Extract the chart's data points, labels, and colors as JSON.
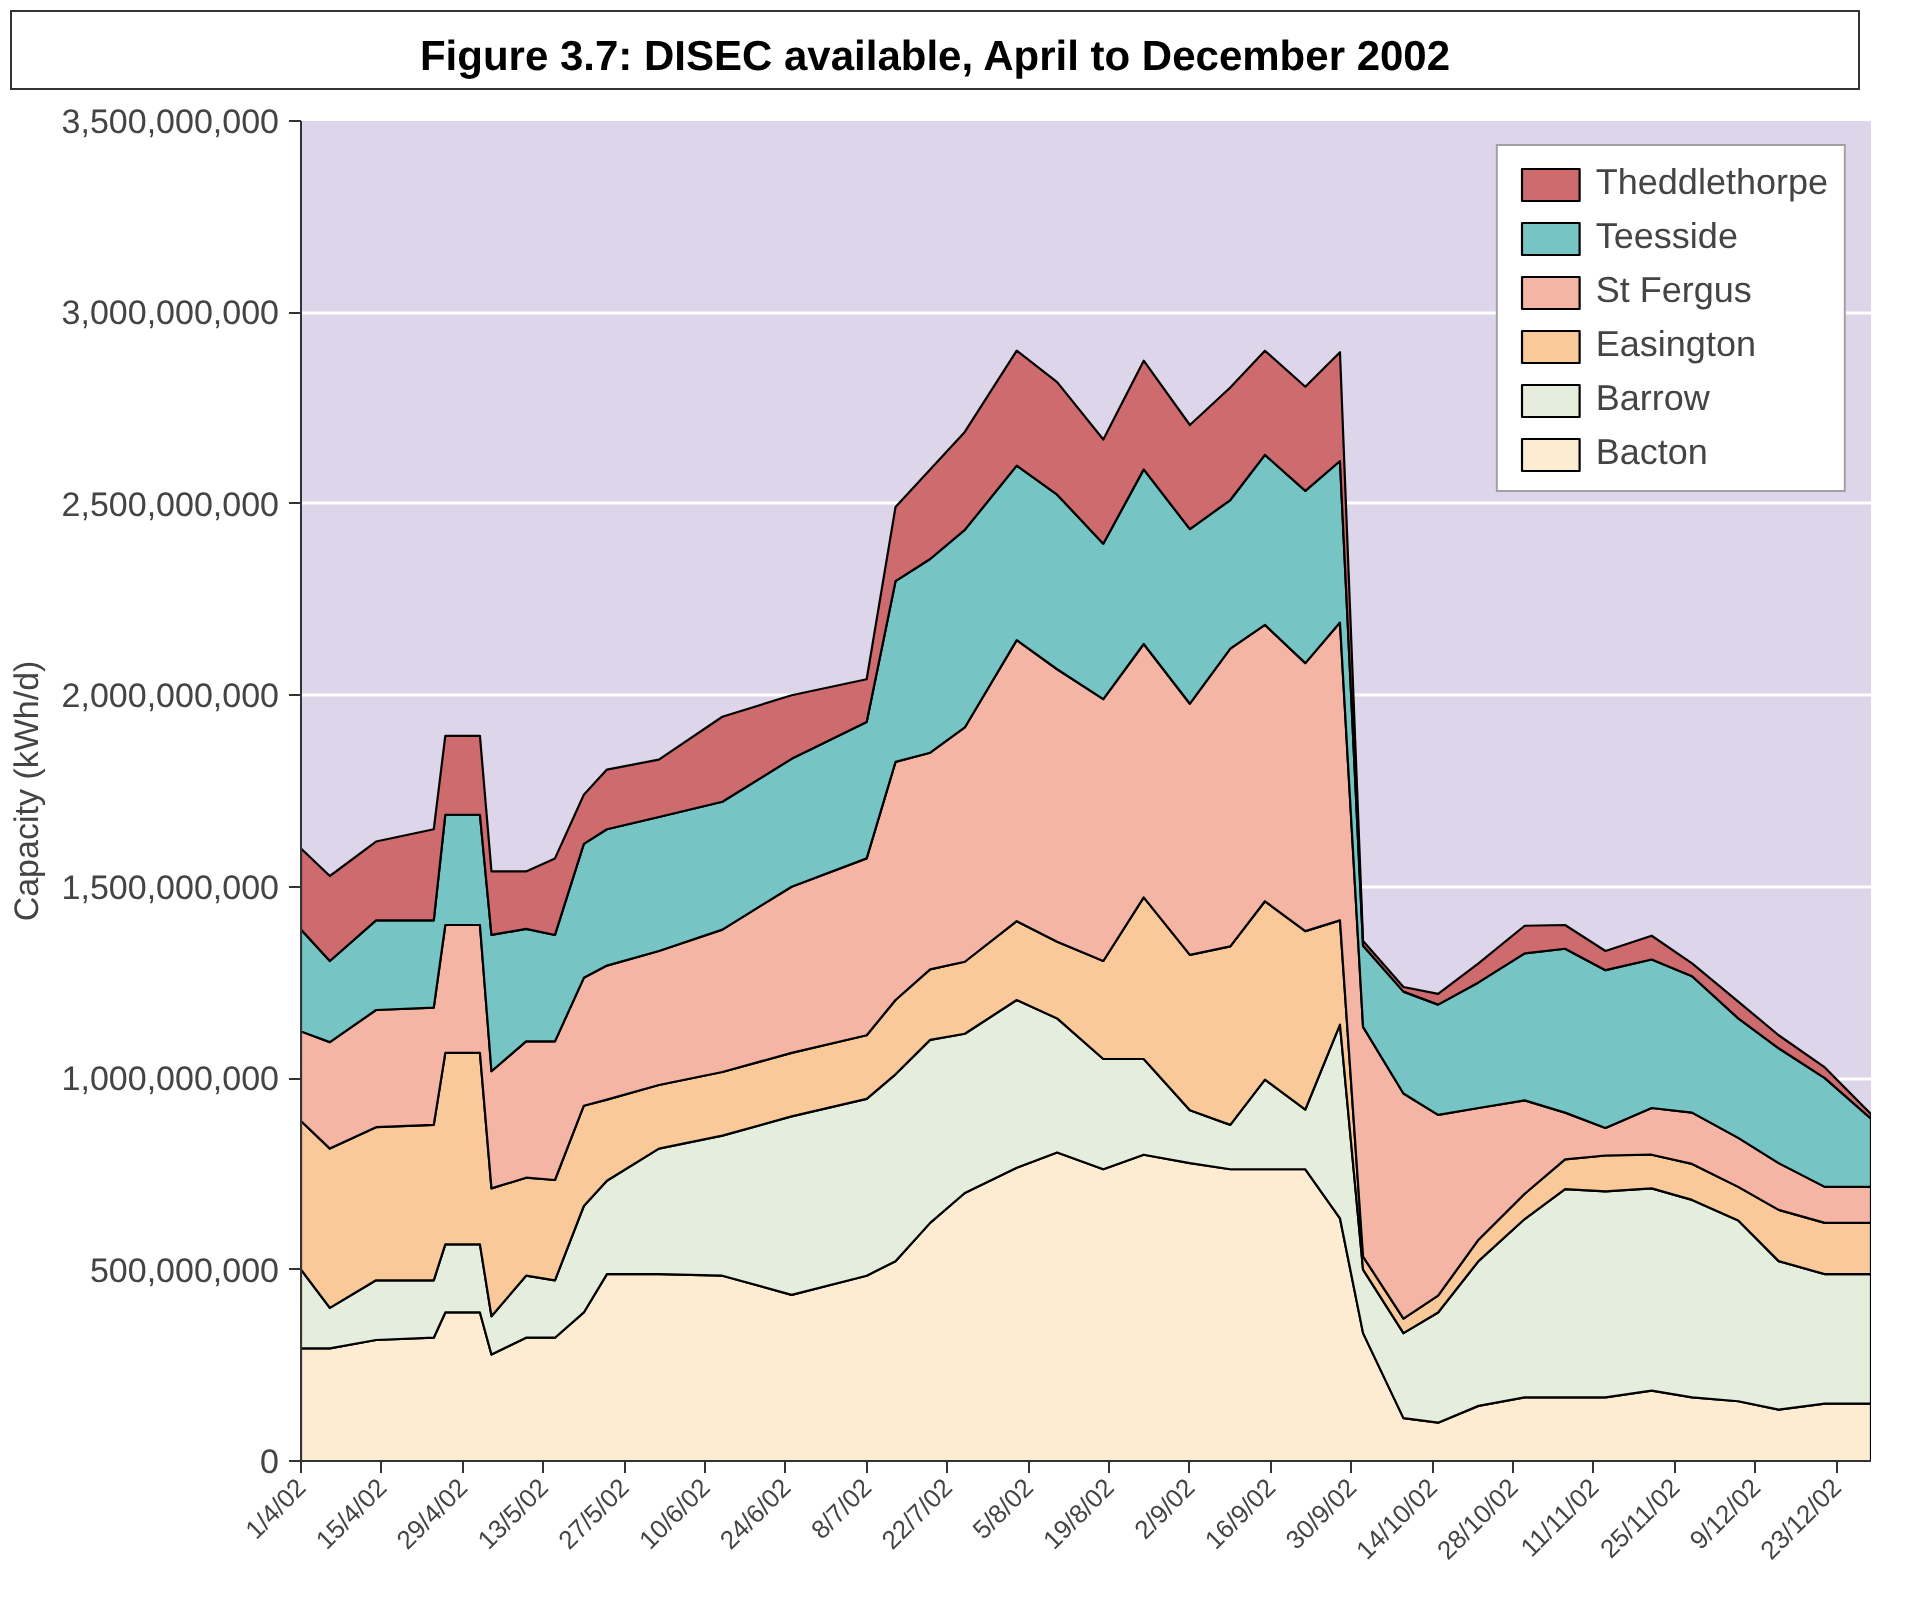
{
  "chart_data": {
    "type": "area",
    "stacked": true,
    "title": "Figure 3.7: DISEC available, April to December 2002",
    "ylabel": "Capacity (kWh/d)",
    "x": [
      "2002-04-01",
      "2002-04-06",
      "2002-04-14",
      "2002-04-24",
      "2002-04-26",
      "2002-05-02",
      "2002-05-04",
      "2002-05-10",
      "2002-05-15",
      "2002-05-20",
      "2002-05-24",
      "2002-06-02",
      "2002-06-13",
      "2002-06-25",
      "2002-07-08",
      "2002-07-13",
      "2002-07-19",
      "2002-07-25",
      "2002-08-03",
      "2002-08-10",
      "2002-08-18",
      "2002-08-25",
      "2002-09-02",
      "2002-09-09",
      "2002-09-15",
      "2002-09-22",
      "2002-09-28",
      "2002-10-02",
      "2002-10-09",
      "2002-10-15",
      "2002-10-22",
      "2002-10-30",
      "2002-11-06",
      "2002-11-13",
      "2002-11-21",
      "2002-11-28",
      "2002-12-06",
      "2002-12-13",
      "2002-12-21",
      "2002-12-29"
    ],
    "series": [
      {
        "name": "Bacton",
        "color": "#fdebd2",
        "values": [
          294000000,
          294000000,
          316000000,
          322000000,
          388000000,
          388000000,
          278000000,
          322000000,
          322000000,
          388000000,
          488000000,
          488000000,
          484000000,
          434000000,
          484000000,
          522000000,
          622000000,
          700000000,
          766000000,
          806000000,
          762000000,
          800000000,
          778000000,
          762000000,
          762000000,
          762000000,
          634000000,
          334000000,
          112000000,
          100000000,
          144000000,
          166000000,
          166000000,
          166000000,
          184000000,
          166000000,
          156000000,
          134000000,
          150000000,
          150000000
        ]
      },
      {
        "name": "Barrow",
        "color": "#e5eedc",
        "values": [
          206000000,
          106000000,
          156000000,
          150000000,
          178000000,
          178000000,
          100000000,
          162000000,
          150000000,
          278000000,
          244000000,
          328000000,
          366000000,
          466000000,
          462000000,
          488000000,
          478000000,
          416000000,
          438000000,
          350000000,
          288000000,
          250000000,
          138000000,
          116000000,
          234000000,
          156000000,
          506000000,
          166000000,
          222000000,
          288000000,
          378000000,
          466000000,
          544000000,
          538000000,
          528000000,
          516000000,
          472000000,
          388000000,
          338000000,
          338000000
        ]
      },
      {
        "name": "Easington",
        "color": "#f9c99a",
        "values": [
          388000000,
          416000000,
          400000000,
          406000000,
          500000000,
          500000000,
          334000000,
          256000000,
          262000000,
          262000000,
          212000000,
          166000000,
          166000000,
          166000000,
          166000000,
          194000000,
          184000000,
          188000000,
          206000000,
          200000000,
          256000000,
          422000000,
          406000000,
          466000000,
          466000000,
          466000000,
          272000000,
          34000000,
          38000000,
          44000000,
          56000000,
          66000000,
          78000000,
          94000000,
          88000000,
          94000000,
          88000000,
          134000000,
          134000000,
          134000000
        ]
      },
      {
        "name": "St Fergus",
        "color": "#f4b5a4",
        "values": [
          234000000,
          278000000,
          306000000,
          306000000,
          334000000,
          334000000,
          306000000,
          356000000,
          362000000,
          334000000,
          350000000,
          350000000,
          372000000,
          434000000,
          462000000,
          622000000,
          566000000,
          612000000,
          734000000,
          712000000,
          684000000,
          662000000,
          656000000,
          778000000,
          722000000,
          700000000,
          778000000,
          600000000,
          588000000,
          472000000,
          344000000,
          244000000,
          122000000,
          72000000,
          122000000,
          134000000,
          128000000,
          122000000,
          94000000,
          94000000
        ]
      },
      {
        "name": "Teesside",
        "color": "#76c5c4",
        "values": [
          266000000,
          212000000,
          234000000,
          228000000,
          288000000,
          288000000,
          356000000,
          294000000,
          278000000,
          350000000,
          356000000,
          350000000,
          334000000,
          334000000,
          356000000,
          472000000,
          506000000,
          516000000,
          456000000,
          456000000,
          406000000,
          456000000,
          456000000,
          388000000,
          444000000,
          450000000,
          422000000,
          212000000,
          266000000,
          288000000,
          328000000,
          384000000,
          428000000,
          412000000,
          388000000,
          356000000,
          312000000,
          300000000,
          284000000,
          178000000
        ]
      },
      {
        "name": "Theddlethorpe",
        "color": "#cd6b6f",
        "values": [
          212000000,
          222000000,
          206000000,
          238000000,
          206000000,
          206000000,
          166000000,
          150000000,
          200000000,
          128000000,
          156000000,
          150000000,
          222000000,
          166000000,
          112000000,
          194000000,
          234000000,
          256000000,
          300000000,
          294000000,
          272000000,
          284000000,
          272000000,
          294000000,
          272000000,
          272000000,
          284000000,
          12000000,
          12000000,
          28000000,
          50000000,
          72000000,
          62000000,
          50000000,
          62000000,
          34000000,
          44000000,
          34000000,
          28000000,
          12000000
        ]
      }
    ],
    "xlim": [
      "2002-04-01",
      "2002-12-29"
    ],
    "xticks": [
      {
        "value": "2002-04-01",
        "label": "1/4/02"
      },
      {
        "value": "2002-04-15",
        "label": "15/4/02"
      },
      {
        "value": "2002-04-29",
        "label": "29/4/02"
      },
      {
        "value": "2002-05-13",
        "label": "13/5/02"
      },
      {
        "value": "2002-05-27",
        "label": "27/5/02"
      },
      {
        "value": "2002-06-10",
        "label": "10/6/02"
      },
      {
        "value": "2002-06-24",
        "label": "24/6/02"
      },
      {
        "value": "2002-07-08",
        "label": "8/7/02"
      },
      {
        "value": "2002-07-22",
        "label": "22/7/02"
      },
      {
        "value": "2002-08-05",
        "label": "5/8/02"
      },
      {
        "value": "2002-08-19",
        "label": "19/8/02"
      },
      {
        "value": "2002-09-02",
        "label": "2/9/02"
      },
      {
        "value": "2002-09-16",
        "label": "16/9/02"
      },
      {
        "value": "2002-09-30",
        "label": "30/9/02"
      },
      {
        "value": "2002-10-14",
        "label": "14/10/02"
      },
      {
        "value": "2002-10-28",
        "label": "28/10/02"
      },
      {
        "value": "2002-11-11",
        "label": "11/11/02"
      },
      {
        "value": "2002-11-25",
        "label": "25/11/02"
      },
      {
        "value": "2002-12-09",
        "label": "9/12/02"
      },
      {
        "value": "2002-12-23",
        "label": "23/12/02"
      }
    ],
    "ylim": [
      0,
      3500000000
    ],
    "yticks": [
      {
        "value": 0,
        "label": "0"
      },
      {
        "value": 500000000,
        "label": "500,000,000"
      },
      {
        "value": 1000000000,
        "label": "1,000,000,000"
      },
      {
        "value": 1500000000,
        "label": "1,500,000,000"
      },
      {
        "value": 2000000000,
        "label": "2,000,000,000"
      },
      {
        "value": 2500000000,
        "label": "2,500,000,000"
      },
      {
        "value": 3000000000,
        "label": "3,000,000,000"
      },
      {
        "value": 3500000000,
        "label": "3,500,000,000"
      }
    ],
    "grid": "y",
    "legend": "top right"
  }
}
